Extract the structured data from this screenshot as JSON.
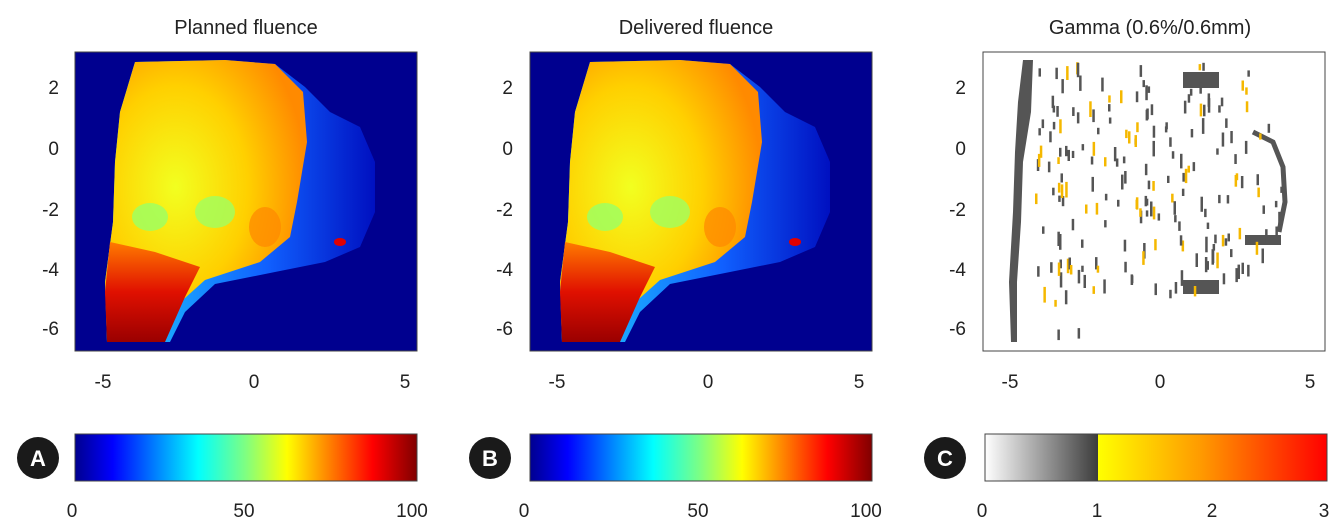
{
  "panels": [
    {
      "id": "A",
      "title": "Planned fluence",
      "xticks": [
        "-5",
        "0",
        "5"
      ],
      "yticks": [
        "2",
        "0",
        "-2",
        "-4",
        "-6"
      ],
      "colorbar": {
        "type": "jet",
        "ticks": [
          "0",
          "50",
          "100"
        ],
        "range": [
          0,
          100
        ]
      }
    },
    {
      "id": "B",
      "title": "Delivered fluence",
      "xticks": [
        "-5",
        "0",
        "5"
      ],
      "yticks": [
        "2",
        "0",
        "-2",
        "-4",
        "-6"
      ],
      "colorbar": {
        "type": "jet",
        "ticks": [
          "0",
          "50",
          "100"
        ],
        "range": [
          0,
          100
        ]
      }
    },
    {
      "id": "C",
      "title": "Gamma (0.6%/0.6mm)",
      "xticks": [
        "-5",
        "0",
        "5"
      ],
      "yticks": [
        "2",
        "0",
        "-2",
        "-4",
        "-6"
      ],
      "colorbar": {
        "type": "gamma",
        "ticks": [
          "0",
          "1",
          "2",
          "3"
        ],
        "range": [
          0,
          3
        ]
      }
    }
  ],
  "chart_data": [
    {
      "type": "heatmap",
      "title": "Planned fluence",
      "xlim": [
        -5.8,
        5.8
      ],
      "ylim": [
        -6.8,
        3.2
      ],
      "x_ticks": [
        -5,
        0,
        5
      ],
      "y_ticks": [
        2,
        0,
        -2,
        -4,
        -6
      ],
      "colormap": "jet",
      "color_range": [
        0,
        100
      ],
      "color_ticks": [
        0,
        50,
        100
      ]
    },
    {
      "type": "heatmap",
      "title": "Delivered fluence",
      "xlim": [
        -5.8,
        5.8
      ],
      "ylim": [
        -6.8,
        3.2
      ],
      "x_ticks": [
        -5,
        0,
        5
      ],
      "y_ticks": [
        2,
        0,
        -2,
        -4,
        -6
      ],
      "colormap": "jet",
      "color_range": [
        0,
        100
      ],
      "color_ticks": [
        0,
        50,
        100
      ]
    },
    {
      "type": "heatmap",
      "title": "Gamma (0.6%/0.6mm)",
      "xlim": [
        -5.8,
        5.8
      ],
      "ylim": [
        -6.8,
        3.2
      ],
      "x_ticks": [
        -5,
        0,
        5
      ],
      "y_ticks": [
        2,
        0,
        -2,
        -4,
        -6
      ],
      "colormap": "gray 0-1, yellow-red 1-3",
      "color_range": [
        0,
        3
      ],
      "color_ticks": [
        0,
        1,
        2,
        3
      ]
    }
  ]
}
